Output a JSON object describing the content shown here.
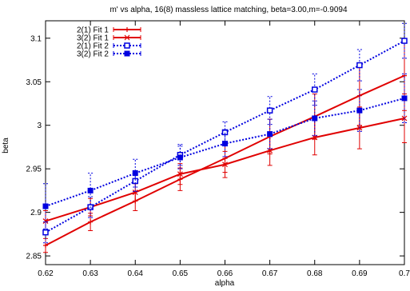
{
  "chart_data": {
    "type": "line",
    "title": "m' vs alpha, 16(8) massless lattice matching, beta=3.00,m=-0.9094",
    "xlabel": "alpha",
    "ylabel": "beta",
    "xlim": [
      0.62,
      0.7
    ],
    "ylim": [
      2.84,
      3.12
    ],
    "xticks": [
      "0.62",
      "0.63",
      "0.64",
      "0.65",
      "0.66",
      "0.67",
      "0.68",
      "0.69",
      "0.7"
    ],
    "yticks": [
      "2.85",
      "2.9",
      "2.95",
      "3",
      "3.05",
      "3.1"
    ],
    "x": [
      0.62,
      0.63,
      0.64,
      0.65,
      0.66,
      0.67,
      0.68,
      0.69,
      0.7
    ],
    "legend_position": "top-left",
    "grid": false,
    "series": [
      {
        "name": "2(1) Fit 1",
        "color": "#e00000",
        "style": "solid",
        "marker": "plus",
        "y": [
          2.862,
          2.889,
          2.913,
          2.938,
          2.962,
          2.987,
          3.01,
          3.034,
          3.057
        ],
        "err": [
          0.008,
          0.01,
          0.011,
          0.013,
          0.016,
          0.02,
          0.026,
          0.034,
          0.04
        ]
      },
      {
        "name": "3(2) Fit 1",
        "color": "#e00000",
        "style": "solid",
        "marker": "cross",
        "y": [
          2.89,
          2.906,
          2.923,
          2.944,
          2.955,
          2.971,
          2.986,
          2.997,
          3.008
        ],
        "err": [
          0.012,
          0.01,
          0.01,
          0.012,
          0.015,
          0.017,
          0.02,
          0.024,
          0.028
        ]
      },
      {
        "name": "2(1) Fit 2",
        "color": "#0000e0",
        "style": "dotted",
        "marker": "square",
        "y": [
          2.877,
          2.906,
          2.936,
          2.966,
          2.992,
          3.017,
          3.041,
          3.069,
          3.097
        ],
        "err": [
          0.012,
          0.012,
          0.012,
          0.012,
          0.012,
          0.016,
          0.018,
          0.018,
          0.02
        ]
      },
      {
        "name": "3(2) Fit 2",
        "color": "#0000e0",
        "style": "dotted",
        "marker": "square-filled",
        "y": [
          2.907,
          2.925,
          2.945,
          2.963,
          2.979,
          2.99,
          3.008,
          3.017,
          3.031
        ],
        "err": [
          0.026,
          0.02,
          0.016,
          0.013,
          0.015,
          0.017,
          0.02,
          0.024,
          0.028
        ]
      }
    ]
  }
}
